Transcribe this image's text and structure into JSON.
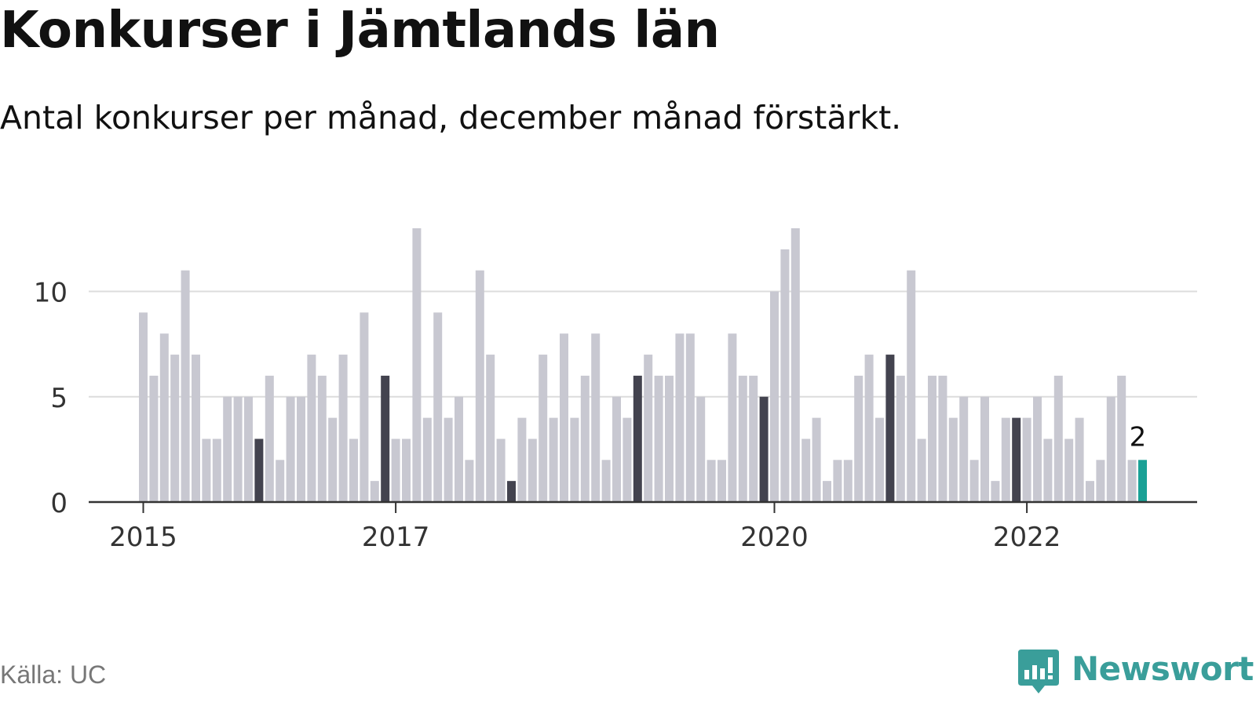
{
  "title": "Konkurser i Jämtlands län",
  "subtitle": "Antal konkurser per månad, december månad förstärkt.",
  "source": "Källa: UC",
  "brand": "Newsworthy",
  "colors": {
    "bar": "#c8c8d1",
    "december": "#43434f",
    "latest": "#1aa196",
    "grid": "#dcdcdc",
    "axis": "#333333"
  },
  "chart_data": {
    "type": "bar",
    "title": "Konkurser i Jämtlands län",
    "xlabel": "",
    "ylabel": "",
    "ylim": [
      0,
      13
    ],
    "yticks": [
      {
        "value": 0,
        "label": "0"
      },
      {
        "value": 5,
        "label": "5"
      },
      {
        "value": 10,
        "label": "10"
      }
    ],
    "xticks": [
      {
        "index": 0,
        "label": "2015"
      },
      {
        "index": 24,
        "label": "2017"
      },
      {
        "index": 60,
        "label": "2020"
      },
      {
        "index": 84,
        "label": "2022"
      }
    ],
    "start": "2015-01",
    "highlight": "December bars are emphasized; the latest month is accented and labeled",
    "values": [
      9,
      6,
      8,
      7,
      11,
      7,
      3,
      3,
      5,
      5,
      5,
      3,
      6,
      2,
      5,
      5,
      7,
      6,
      4,
      7,
      3,
      9,
      1,
      6,
      3,
      3,
      13,
      4,
      9,
      4,
      5,
      2,
      11,
      7,
      3,
      1,
      4,
      3,
      7,
      4,
      8,
      4,
      6,
      8,
      2,
      5,
      4,
      6,
      7,
      6,
      6,
      8,
      8,
      5,
      2,
      2,
      8,
      6,
      6,
      5,
      10,
      12,
      13,
      3,
      4,
      1,
      2,
      2,
      6,
      7,
      4,
      7,
      6,
      11,
      3,
      6,
      6,
      4,
      5,
      2,
      5,
      1,
      4,
      4,
      4,
      5,
      3,
      6,
      3,
      4,
      1,
      2,
      5,
      6,
      2,
      2
    ],
    "last_value_label": "2"
  }
}
